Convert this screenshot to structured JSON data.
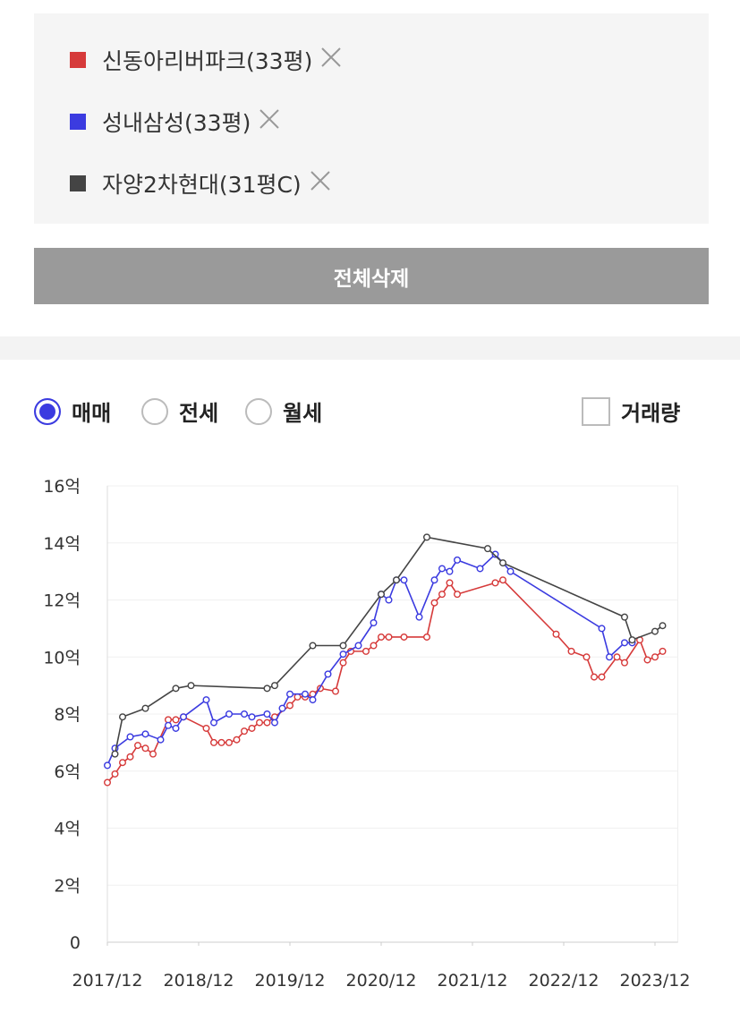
{
  "panel": {
    "delete_all": "전체삭제"
  },
  "trade_types": [
    {
      "label": "매매",
      "selected": true
    },
    {
      "label": "전세",
      "selected": false
    },
    {
      "label": "월세",
      "selected": false
    }
  ],
  "volume_toggle": {
    "label": "거래량",
    "checked": false
  },
  "chart_data": {
    "type": "line",
    "xlim": [
      "2017/12",
      "2024/03"
    ],
    "xticks": [
      "2017/12",
      "2018/12",
      "2019/12",
      "2020/12",
      "2021/12",
      "2022/12",
      "2023/12"
    ],
    "ylim": [
      0,
      16
    ],
    "yticks": [
      0,
      {
        "value": 2,
        "label": "2억"
      },
      {
        "value": 4,
        "label": "4억"
      },
      {
        "value": 6,
        "label": "6억"
      },
      {
        "value": 8,
        "label": "8억"
      },
      {
        "value": 10,
        "label": "10억"
      },
      {
        "value": 12,
        "label": "12억"
      },
      {
        "value": 14,
        "label": "14억"
      },
      {
        "value": 16,
        "label": "16억"
      }
    ],
    "grid": true,
    "series": [
      {
        "name": "신동아리버파크(33평)",
        "color": "#d63a3a",
        "x": [
          "2017/12",
          "2018/01",
          "2018/02",
          "2018/03",
          "2018/04",
          "2018/05",
          "2018/06",
          "2018/08",
          "2018/09",
          "2018/10",
          "2019/01",
          "2019/02",
          "2019/03",
          "2019/04",
          "2019/05",
          "2019/06",
          "2019/07",
          "2019/08",
          "2019/09",
          "2019/10",
          "2019/12",
          "2020/01",
          "2020/02",
          "2020/03",
          "2020/04",
          "2020/06",
          "2020/07",
          "2020/08",
          "2020/10",
          "2020/11",
          "2020/12",
          "2021/01",
          "2021/03",
          "2021/06",
          "2021/07",
          "2021/08",
          "2021/09",
          "2021/10",
          "2022/03",
          "2022/04",
          "2022/11",
          "2023/01",
          "2023/03",
          "2023/04",
          "2023/05",
          "2023/07",
          "2023/08",
          "2023/10",
          "2023/11",
          "2023/12",
          "2024/01"
        ],
        "values": [
          5.6,
          5.9,
          6.3,
          6.5,
          6.9,
          6.8,
          6.6,
          7.8,
          7.8,
          7.9,
          7.5,
          7.0,
          7.0,
          7.0,
          7.1,
          7.4,
          7.5,
          7.7,
          7.7,
          7.9,
          8.3,
          8.6,
          8.6,
          8.7,
          8.9,
          8.8,
          9.8,
          10.2,
          10.2,
          10.4,
          10.7,
          10.7,
          10.7,
          10.7,
          11.9,
          12.2,
          12.6,
          12.2,
          12.6,
          12.7,
          10.8,
          10.2,
          10.0,
          9.3,
          9.3,
          10.0,
          9.8,
          10.6,
          9.9,
          10.0,
          10.2
        ]
      },
      {
        "name": "성내삼성(33평)",
        "color": "#3b3be0",
        "x": [
          "2017/12",
          "2018/01",
          "2018/03",
          "2018/05",
          "2018/07",
          "2018/08",
          "2018/09",
          "2018/10",
          "2019/01",
          "2019/02",
          "2019/04",
          "2019/06",
          "2019/07",
          "2019/09",
          "2019/10",
          "2019/11",
          "2019/12",
          "2020/02",
          "2020/03",
          "2020/05",
          "2020/07",
          "2020/09",
          "2020/11",
          "2020/12",
          "2021/01",
          "2021/02",
          "2021/03",
          "2021/05",
          "2021/07",
          "2021/08",
          "2021/09",
          "2021/10",
          "2022/01",
          "2022/03",
          "2022/05",
          "2023/05",
          "2023/06",
          "2023/08",
          "2023/09"
        ],
        "values": [
          6.2,
          6.8,
          7.2,
          7.3,
          7.1,
          7.6,
          7.5,
          7.9,
          8.5,
          7.7,
          8.0,
          8.0,
          7.9,
          8.0,
          7.7,
          8.2,
          8.7,
          8.7,
          8.5,
          9.4,
          10.1,
          10.4,
          11.2,
          12.2,
          12.0,
          12.7,
          12.7,
          11.4,
          12.7,
          13.1,
          13.0,
          13.4,
          13.1,
          13.6,
          13.0,
          11.0,
          10.0,
          10.5,
          10.5
        ]
      },
      {
        "name": "자양2차현대(31평C)",
        "color": "#444444",
        "x": [
          "2018/01",
          "2018/02",
          "2018/05",
          "2018/09",
          "2018/11",
          "2019/09",
          "2019/10",
          "2020/03",
          "2020/07",
          "2020/12",
          "2021/02",
          "2021/06",
          "2022/02",
          "2022/04",
          "2023/08",
          "2023/09",
          "2023/12",
          "2024/01"
        ],
        "values": [
          6.6,
          7.9,
          8.2,
          8.9,
          9.0,
          8.9,
          9.0,
          10.4,
          10.4,
          12.2,
          12.7,
          14.2,
          13.8,
          13.3,
          11.4,
          10.6,
          10.9,
          11.1
        ]
      }
    ]
  }
}
